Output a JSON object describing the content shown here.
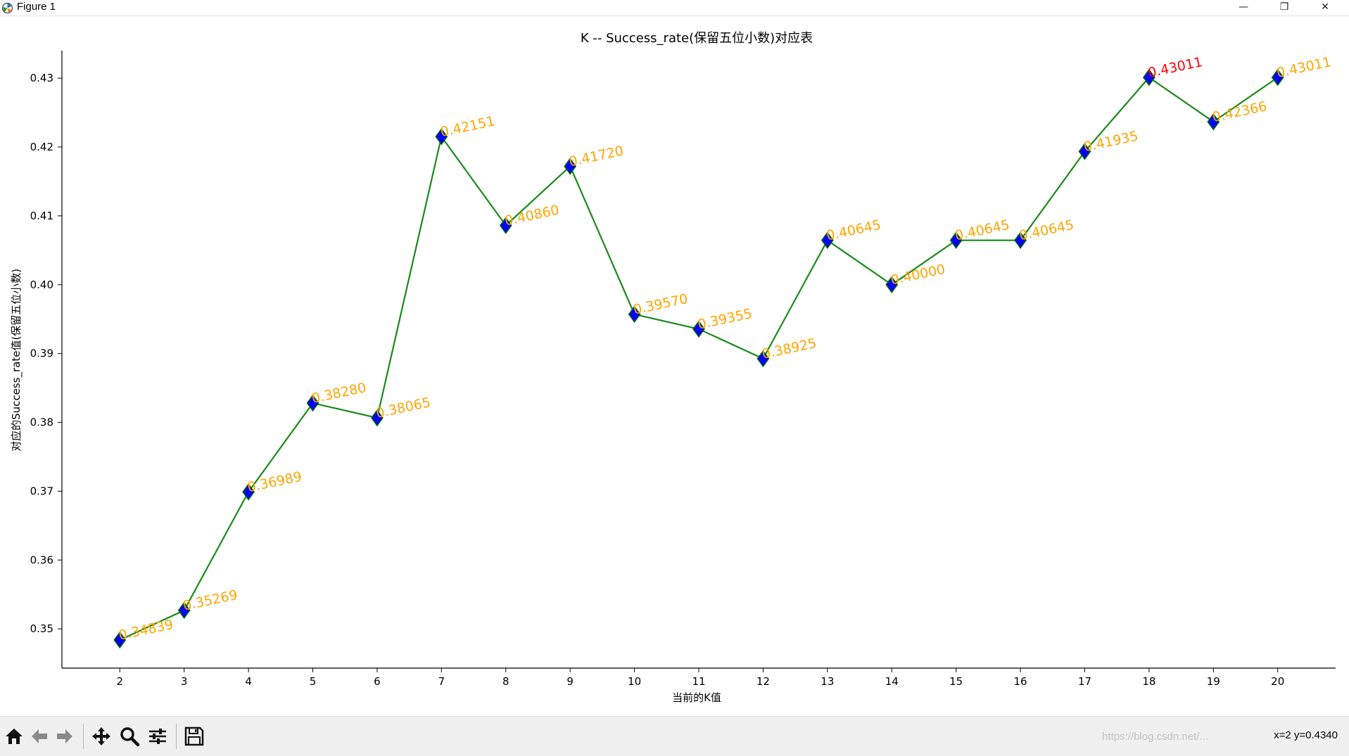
{
  "window": {
    "title": "Figure 1",
    "minimize_glyph": "—",
    "restore_glyph": "❐",
    "close_glyph": "✕"
  },
  "chart_data": {
    "type": "line",
    "title": "K -- Success_rate(保留五位小数)对应表",
    "xlabel": "当前的K值",
    "ylabel": "对应的Success_rate值(保留五位小数)",
    "x": [
      2,
      3,
      4,
      5,
      6,
      7,
      8,
      9,
      10,
      11,
      12,
      13,
      14,
      15,
      16,
      17,
      18,
      19,
      20
    ],
    "y": [
      0.34839,
      0.35269,
      0.36989,
      0.3828,
      0.38065,
      0.42151,
      0.4086,
      0.4172,
      0.3957,
      0.39355,
      0.38925,
      0.40645,
      0.4,
      0.40645,
      0.40645,
      0.41935,
      0.43011,
      0.42366,
      0.43011
    ],
    "labels": [
      "0.34839",
      "0.35269",
      "0.36989",
      "0.38280",
      "0.38065",
      "0.42151",
      "0.40860",
      "0.41720",
      "0.39570",
      "0.39355",
      "0.38925",
      "0.40645",
      "0.40000",
      "0.40645",
      "0.40645",
      "0.41935",
      "0.43011",
      "0.42366",
      "0.43011"
    ],
    "highlight_index": 16,
    "yticks": [
      "0.35",
      "0.36",
      "0.37",
      "0.38",
      "0.39",
      "0.40",
      "0.41",
      "0.42",
      "0.43"
    ],
    "ytick_values": [
      0.35,
      0.36,
      0.37,
      0.38,
      0.39,
      0.4,
      0.41,
      0.42,
      0.43
    ],
    "ylim": [
      0.3443,
      0.434
    ],
    "xlim": [
      1.1,
      20.9
    ],
    "colors": {
      "line": "#1a8a1a",
      "marker_fill": "#0000ff",
      "marker_edge": "#006400",
      "label": "#ffa500",
      "label_highlight": "#ff0000"
    },
    "marker": "diamond",
    "grid": false
  },
  "toolbar": {
    "buttons": [
      {
        "name": "home-button",
        "icon": "home-icon"
      },
      {
        "name": "back-button",
        "icon": "arrow-left-icon"
      },
      {
        "name": "forward-button",
        "icon": "arrow-right-icon"
      },
      {
        "name": "pan-button",
        "icon": "move-icon"
      },
      {
        "name": "zoom-button",
        "icon": "magnifier-icon"
      },
      {
        "name": "configure-subplots-button",
        "icon": "sliders-icon"
      },
      {
        "name": "save-button",
        "icon": "floppy-disk-icon"
      }
    ],
    "coords": "x=2 y=0.4340",
    "watermark": "https://blog.csdn.net/..."
  }
}
